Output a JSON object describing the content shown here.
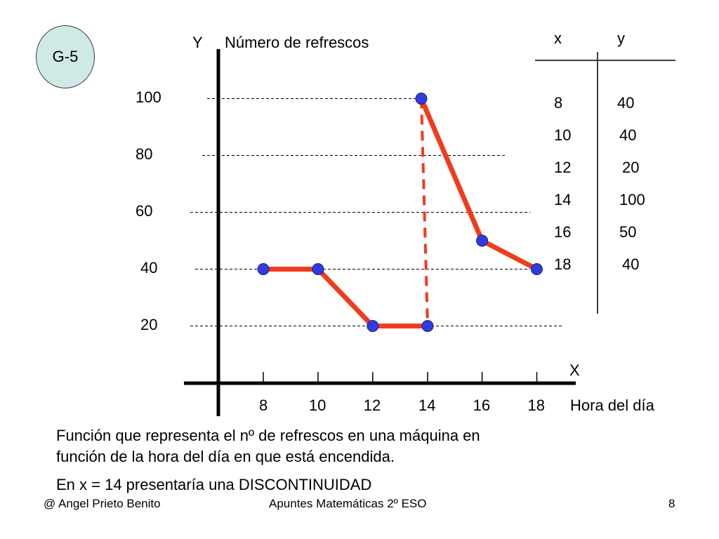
{
  "badge": "G-5",
  "table": {
    "headers": [
      "x",
      "y"
    ],
    "rows": [
      [
        "8",
        "40"
      ],
      [
        "10",
        "40"
      ],
      [
        "12",
        "20"
      ],
      [
        "14",
        "100"
      ],
      [
        "16",
        "50"
      ],
      [
        "18",
        "40"
      ]
    ]
  },
  "caption": {
    "line1": "Función que representa el nº de refrescos en una máquina en",
    "line2": "función de la hora del día en que está encendida.",
    "line3": "En x = 14 presentaría una DISCONTINUIDAD"
  },
  "footer": {
    "author": "@ Angel Prieto Benito",
    "course": "Apuntes Matemáticas 2º ESO",
    "page": "8"
  },
  "colors": {
    "line": "#f03c1e",
    "point": "#2f3de0",
    "badge": "#cfe9e6"
  },
  "chart_data": {
    "type": "line",
    "ylabel_letter": "Y",
    "ylabel": "Número de refrescos",
    "xlabel_letter": "X",
    "xlabel": "Hora del día",
    "x_ticks": [
      "8",
      "10",
      "12",
      "14",
      "16",
      "18"
    ],
    "y_ticks": [
      "100",
      "80",
      "60",
      "40",
      "20"
    ],
    "segments": [
      [
        [
          8,
          40
        ],
        [
          10,
          40
        ],
        [
          12,
          20
        ],
        [
          14,
          20
        ]
      ],
      [
        [
          14,
          100
        ],
        [
          16,
          50
        ],
        [
          18,
          40
        ]
      ]
    ],
    "discontinuity": {
      "x": 14,
      "from": 20,
      "to": 100
    },
    "grid": true
  }
}
